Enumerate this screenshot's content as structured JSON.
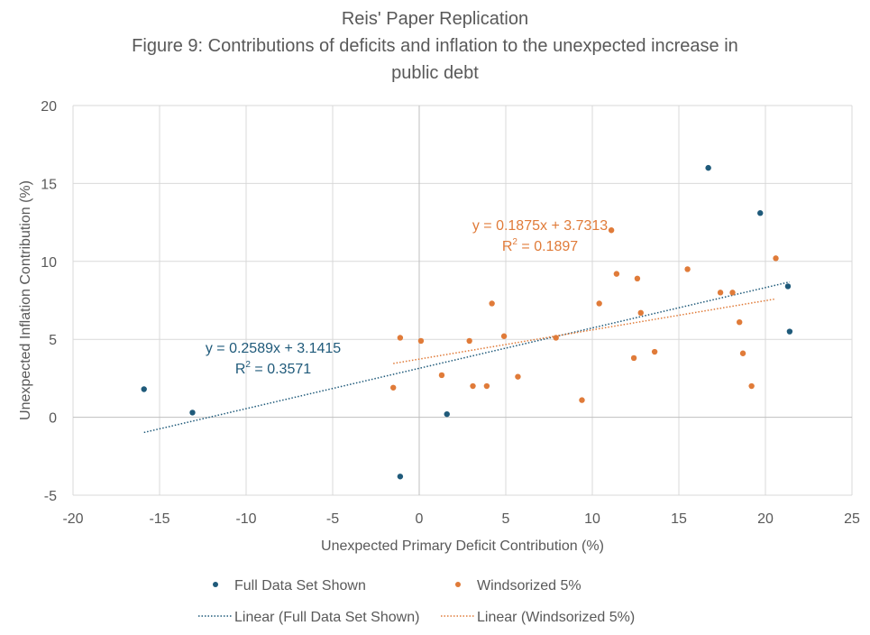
{
  "chart_data": {
    "type": "scatter",
    "title": "Reis' Paper Replication",
    "subtitle_line1": "Figure 9: Contributions of deficits and inflation to the unexpected increase in",
    "subtitle_line2": "public debt",
    "xlabel": "Unexpected Primary Deficit Contribution (%)",
    "ylabel": "Unexpected Inflation Contribution (%)",
    "xlim": [
      -20,
      25
    ],
    "ylim": [
      -5,
      20
    ],
    "xticks": [
      -20,
      -15,
      -10,
      -5,
      0,
      5,
      10,
      15,
      20,
      25
    ],
    "yticks": [
      -5,
      0,
      5,
      10,
      15,
      20
    ],
    "grid": true,
    "legend_position": "bottom",
    "series": [
      {
        "name": "Full Data Set Shown",
        "color": "#1f5a7a",
        "points": [
          [
            -15.9,
            1.8
          ],
          [
            -13.1,
            0.3
          ],
          [
            -1.1,
            -3.8
          ],
          [
            1.6,
            0.2
          ],
          [
            16.7,
            16.0
          ],
          [
            19.7,
            13.1
          ],
          [
            21.3,
            8.4
          ],
          [
            21.4,
            5.5
          ]
        ]
      },
      {
        "name": "Windsorized 5%",
        "color": "#e07b39",
        "points": [
          [
            -1.5,
            1.9
          ],
          [
            -1.1,
            5.1
          ],
          [
            0.1,
            4.9
          ],
          [
            1.3,
            2.7
          ],
          [
            2.9,
            4.9
          ],
          [
            3.1,
            2.0
          ],
          [
            3.9,
            2.0
          ],
          [
            4.2,
            7.3
          ],
          [
            4.9,
            5.2
          ],
          [
            5.7,
            2.6
          ],
          [
            7.9,
            5.1
          ],
          [
            9.4,
            1.1
          ],
          [
            10.4,
            7.3
          ],
          [
            11.1,
            12.0
          ],
          [
            11.4,
            9.2
          ],
          [
            12.4,
            3.8
          ],
          [
            12.6,
            8.9
          ],
          [
            12.8,
            6.7
          ],
          [
            13.6,
            4.2
          ],
          [
            15.5,
            9.5
          ],
          [
            17.4,
            8.0
          ],
          [
            18.1,
            8.0
          ],
          [
            18.5,
            6.1
          ],
          [
            18.7,
            4.1
          ],
          [
            19.2,
            2.0
          ],
          [
            20.6,
            10.2
          ]
        ]
      }
    ],
    "trendlines": [
      {
        "name": "Linear (Full Data Set Shown)",
        "color": "#1f5a7a",
        "slope": 0.2589,
        "intercept": 3.1415,
        "x_range": [
          -15.9,
          21.4
        ],
        "equation": "y = 0.2589x + 3.1415",
        "r2_label": "R",
        "r2_sup": "2",
        "r2_value": " = 0.3571"
      },
      {
        "name": "Linear (Windsorized 5%)",
        "color": "#e07b39",
        "slope": 0.1875,
        "intercept": 3.7313,
        "x_range": [
          -1.5,
          20.6
        ],
        "equation": "y = 0.1875x + 3.7313",
        "r2_label": "R",
        "r2_sup": "2",
        "r2_value": " = 0.1897"
      }
    ]
  }
}
